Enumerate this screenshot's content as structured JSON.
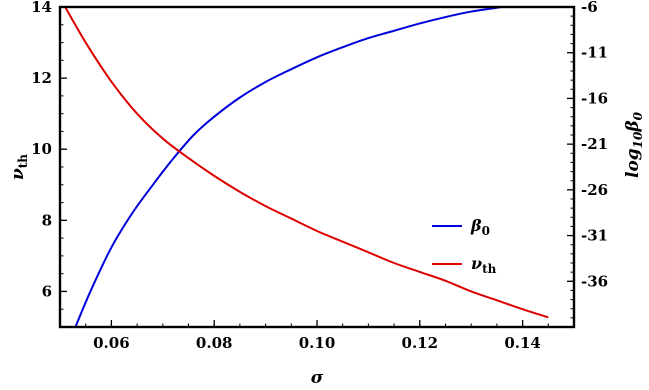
{
  "chart_data": {
    "type": "line",
    "xlabel": "σ",
    "ylabel_left": "ν",
    "ylabel_left_sub": "th",
    "ylabel_right_pre": "log",
    "ylabel_right_sub": "10",
    "ylabel_right_post": "β",
    "ylabel_right_sub2": "0",
    "xlim": [
      0.05,
      0.15
    ],
    "ylim_left": [
      5,
      14
    ],
    "ylim_right": [
      -41,
      -6
    ],
    "x_ticks": [
      0.06,
      0.08,
      0.1,
      0.12,
      0.14
    ],
    "x_tick_labels": [
      "0.06",
      "0.08",
      "0.10",
      "0.12",
      "0.14"
    ],
    "left_ticks": [
      6,
      8,
      10,
      12,
      14
    ],
    "left_tick_labels": [
      "6",
      "8",
      "10",
      "12",
      "14"
    ],
    "right_ticks": [
      -6,
      -11,
      -16,
      -21,
      -26,
      -31,
      -36
    ],
    "right_tick_labels": [
      "-6",
      "-11",
      "-16",
      "-21",
      "-26",
      "-31",
      "-36"
    ],
    "legend_position": "lower-right",
    "series": [
      {
        "name": "β",
        "name_sub": "0",
        "axis": "right",
        "color": "#0000dd",
        "x": [
          0.053,
          0.056,
          0.06,
          0.064,
          0.068,
          0.072,
          0.076,
          0.08,
          0.085,
          0.09,
          0.095,
          0.1,
          0.105,
          0.11,
          0.115,
          0.12,
          0.125,
          0.13,
          0.136
        ],
        "y": [
          -41.0,
          -37.0,
          -32.3,
          -28.6,
          -25.5,
          -22.6,
          -20.0,
          -18.0,
          -15.9,
          -14.2,
          -12.8,
          -11.5,
          -10.4,
          -9.4,
          -8.6,
          -7.8,
          -7.1,
          -6.5,
          -6.0
        ]
      },
      {
        "name": "ν",
        "name_sub": "th",
        "axis": "left",
        "color": "#dd0000",
        "x": [
          0.051,
          0.055,
          0.06,
          0.065,
          0.07,
          0.075,
          0.08,
          0.085,
          0.09,
          0.095,
          0.1,
          0.105,
          0.11,
          0.115,
          0.12,
          0.125,
          0.13,
          0.135,
          0.14,
          0.145
        ],
        "y": [
          14.0,
          13.0,
          11.9,
          11.0,
          10.3,
          9.75,
          9.25,
          8.8,
          8.4,
          8.05,
          7.7,
          7.4,
          7.1,
          6.8,
          6.55,
          6.3,
          6.0,
          5.75,
          5.5,
          5.27
        ]
      }
    ]
  }
}
